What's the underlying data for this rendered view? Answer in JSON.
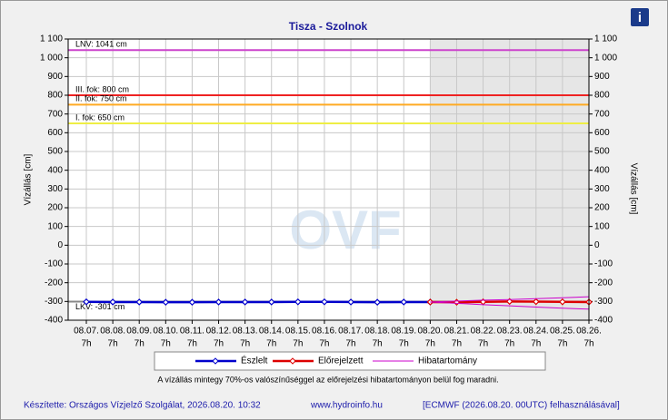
{
  "chart_data": {
    "type": "line",
    "title": "Tisza - Szolnok",
    "ylabel": "Vízállás [cm]",
    "y2label": "Vízállás [cm]",
    "categories": [
      "08.07.",
      "08.08.",
      "08.09.",
      "08.10.",
      "08.11.",
      "08.12.",
      "08.13.",
      "08.14.",
      "08.15.",
      "08.16.",
      "08.17.",
      "08.18.",
      "08.19.",
      "08.20.",
      "08.21.",
      "08.22.",
      "08.23.",
      "08.24.",
      "08.25.",
      "08.26."
    ],
    "x_time": "7h",
    "series": [
      {
        "name": "Észlelt",
        "color": "#0000cc",
        "values": [
          -302,
          -303,
          -303,
          -304,
          -304,
          -303,
          -303,
          -303,
          -302,
          -302,
          -303,
          -304,
          -303,
          -303,
          null,
          null,
          null,
          null,
          null,
          null
        ]
      },
      {
        "name": "Előrejelzett",
        "color": "#dd0000",
        "values": [
          null,
          null,
          null,
          null,
          null,
          null,
          null,
          null,
          null,
          null,
          null,
          null,
          null,
          -303,
          -304,
          -302,
          -300,
          -301,
          -302,
          -303
        ]
      },
      {
        "name": "Hibatartomány",
        "color": "#cc00cc",
        "values": [
          null,
          null,
          null,
          null,
          null,
          null,
          null,
          null,
          null,
          null,
          null,
          null,
          null,
          -303,
          -298,
          -293,
          -290,
          -285,
          -280,
          -275
        ]
      },
      {
        "color": "#cc00cc",
        "values": [
          null,
          null,
          null,
          null,
          null,
          null,
          null,
          null,
          null,
          null,
          null,
          null,
          null,
          -303,
          -310,
          -317,
          -323,
          -330,
          -336,
          -341
        ]
      }
    ],
    "thresholds": [
      {
        "label": "LNV: 1041 cm",
        "value": 1041,
        "color": "#cc44cc"
      },
      {
        "label": "III. fok: 800 cm",
        "value": 800,
        "color": "#ee2222"
      },
      {
        "label": "II. fok: 750 cm",
        "value": 750,
        "color": "#ffaa22"
      },
      {
        "label": "I. fok: 650 cm",
        "value": 650,
        "color": "#eeee44"
      },
      {
        "label": "LKV: -301 cm",
        "value": -301,
        "color": "#888888"
      }
    ],
    "ylim": [
      -400,
      1100
    ],
    "y2lim": [
      -400,
      1100
    ],
    "yticks": [
      -400,
      -300,
      -200,
      -100,
      0,
      100,
      200,
      300,
      400,
      500,
      600,
      700,
      800,
      900,
      {
        "value": 1000,
        "label": "1 000"
      },
      {
        "value": 1100,
        "label": "1 100"
      }
    ],
    "grid": true,
    "watermark": "OVF",
    "info_icon": "i",
    "note": "A vízállás mintegy 70%-os valószínűséggel az előrejelzési hibatartományon belül fog maradni.",
    "footer": [
      "Készítette: Országos Vízjelző Szolgálat, 2026.08.20. 10:32",
      "www.hydroinfo.hu",
      "[ECMWF (2026.08.20. 00UTC) felhasználásával]"
    ]
  }
}
